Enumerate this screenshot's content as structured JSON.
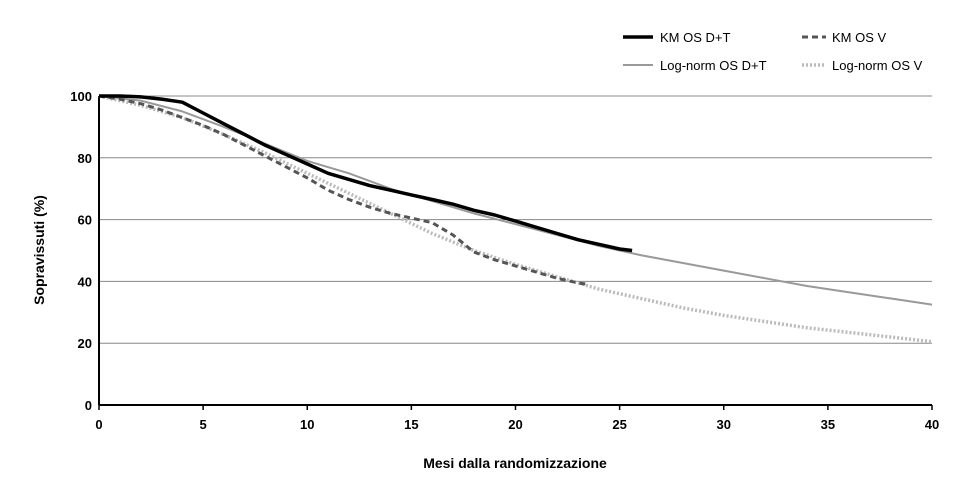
{
  "chart_data": {
    "type": "line",
    "xlabel": "Mesi dalla randomizzazione",
    "ylabel": "Sopravissuti (%)",
    "xlim": [
      0,
      40
    ],
    "ylim": [
      0,
      100
    ],
    "xticks": [
      0,
      5,
      10,
      15,
      20,
      25,
      30,
      35,
      40
    ],
    "yticks": [
      0,
      20,
      40,
      60,
      80,
      100
    ],
    "grid": "horizontal",
    "legend_position": "top-right",
    "series": [
      {
        "name": "KM OS D+T",
        "color": "#000000",
        "style": "solid-thick",
        "points": [
          [
            0,
            100
          ],
          [
            1,
            100
          ],
          [
            2,
            99.7
          ],
          [
            3,
            99
          ],
          [
            4,
            98
          ],
          [
            5,
            94.5
          ],
          [
            6,
            91
          ],
          [
            7,
            87.5
          ],
          [
            8,
            84
          ],
          [
            9,
            81
          ],
          [
            10,
            78
          ],
          [
            11,
            75
          ],
          [
            12,
            73
          ],
          [
            13,
            71
          ],
          [
            14,
            69.5
          ],
          [
            15,
            68
          ],
          [
            16,
            66.5
          ],
          [
            17,
            65
          ],
          [
            18,
            63
          ],
          [
            19,
            61.5
          ],
          [
            20,
            59.5
          ],
          [
            21,
            57.5
          ],
          [
            22,
            55.5
          ],
          [
            23,
            53.5
          ],
          [
            24,
            52
          ],
          [
            25,
            50.5
          ],
          [
            25.6,
            50
          ]
        ]
      },
      {
        "name": "KM OS V",
        "color": "#555555",
        "style": "dashed",
        "points": [
          [
            0,
            100
          ],
          [
            1,
            99
          ],
          [
            2,
            97.5
          ],
          [
            3,
            95.5
          ],
          [
            4,
            93
          ],
          [
            5,
            90.5
          ],
          [
            6,
            87.5
          ],
          [
            7,
            84
          ],
          [
            8,
            80.5
          ],
          [
            9,
            77
          ],
          [
            10,
            73.5
          ],
          [
            11,
            69.5
          ],
          [
            12,
            66.5
          ],
          [
            13,
            64
          ],
          [
            14,
            62
          ],
          [
            15,
            60.5
          ],
          [
            16,
            59
          ],
          [
            17,
            55
          ],
          [
            18,
            49.5
          ],
          [
            19,
            47
          ],
          [
            20,
            45
          ],
          [
            21,
            43
          ],
          [
            22,
            41
          ],
          [
            23,
            39.5
          ],
          [
            23.5,
            39
          ]
        ]
      },
      {
        "name": "Log-norm OS D+T",
        "color": "#999999",
        "style": "solid-thin",
        "points": [
          [
            0,
            100
          ],
          [
            2,
            98.5
          ],
          [
            4,
            95
          ],
          [
            6,
            90
          ],
          [
            8,
            84.5
          ],
          [
            10,
            79
          ],
          [
            12,
            75
          ],
          [
            14,
            70
          ],
          [
            16,
            66
          ],
          [
            18,
            62
          ],
          [
            20,
            58.5
          ],
          [
            22,
            55
          ],
          [
            24,
            51.5
          ],
          [
            26,
            48.5
          ],
          [
            28,
            46
          ],
          [
            30,
            43.5
          ],
          [
            32,
            41
          ],
          [
            34,
            38.5
          ],
          [
            36,
            36.5
          ],
          [
            38,
            34.5
          ],
          [
            40,
            32.5
          ]
        ]
      },
      {
        "name": "Log-norm OS V",
        "color": "#bbbbbb",
        "style": "dotted",
        "points": [
          [
            0,
            100
          ],
          [
            2,
            97
          ],
          [
            4,
            93
          ],
          [
            6,
            87.5
          ],
          [
            8,
            81.5
          ],
          [
            10,
            75
          ],
          [
            12,
            68.5
          ],
          [
            14,
            62
          ],
          [
            16,
            55.5
          ],
          [
            18,
            50
          ],
          [
            20,
            45.5
          ],
          [
            22,
            41.5
          ],
          [
            24,
            37.5
          ],
          [
            26,
            34.5
          ],
          [
            28,
            31.5
          ],
          [
            30,
            29
          ],
          [
            32,
            27
          ],
          [
            34,
            25
          ],
          [
            36,
            23.5
          ],
          [
            38,
            22
          ],
          [
            40,
            20.5
          ]
        ]
      }
    ]
  }
}
